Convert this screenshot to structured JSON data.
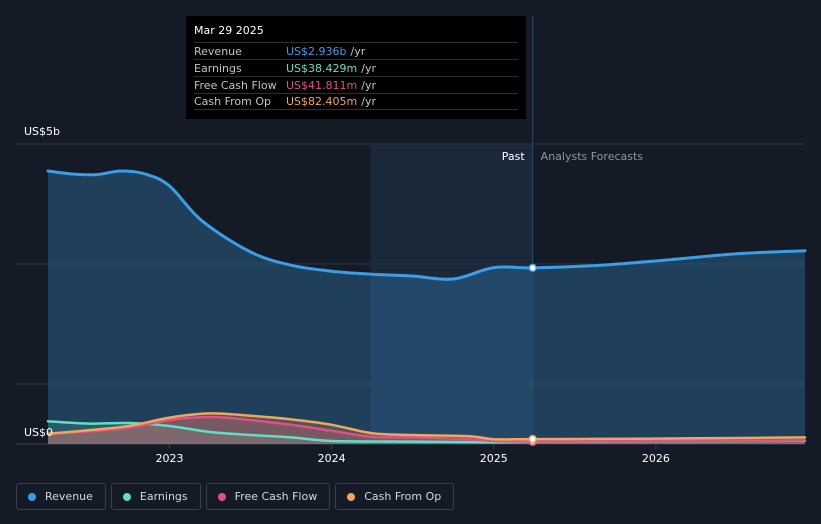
{
  "tooltip": {
    "date": "Mar 29 2025",
    "rows": [
      {
        "label": "Revenue",
        "value": "US$2.936b",
        "unit": "/yr",
        "color": "#3b9ee6"
      },
      {
        "label": "Earnings",
        "value": "US$38.429m",
        "unit": "/yr",
        "color": "#5fe0c4"
      },
      {
        "label": "Free Cash Flow",
        "value": "US$41.811m",
        "unit": "/yr",
        "color": "#e0508a"
      },
      {
        "label": "Cash From Op",
        "value": "US$82.405m",
        "unit": "/yr",
        "color": "#f0a858"
      }
    ]
  },
  "legend": [
    {
      "label": "Revenue",
      "color": "#3b9ee6"
    },
    {
      "label": "Earnings",
      "color": "#5fe0c4"
    },
    {
      "label": "Free Cash Flow",
      "color": "#e0508a"
    },
    {
      "label": "Cash From Op",
      "color": "#f0a858"
    }
  ],
  "chart_data": {
    "type": "area",
    "title": "",
    "y_max_label": "US$5b",
    "y_min_label": "US$0",
    "ylim": [
      0,
      5.0
    ],
    "xlim": [
      2022.25,
      2026.92
    ],
    "x_ticks": [
      2023,
      2024,
      2025,
      2026
    ],
    "x_tick_labels": [
      "2023",
      "2024",
      "2025",
      "2026"
    ],
    "past_label": "Past",
    "forecast_label": "Analysts Forecasts",
    "divider_x": 2025.24,
    "shaded_start_x": 2024.24,
    "series": [
      {
        "name": "Revenue",
        "unit": "US$b",
        "color": "#3b9ee6",
        "fill": true,
        "x": [
          2022.25,
          2022.4,
          2022.55,
          2022.7,
          2022.85,
          2023.0,
          2023.2,
          2023.5,
          2023.75,
          2024.0,
          2024.25,
          2024.5,
          2024.75,
          2025.0,
          2025.24,
          2025.6,
          2026.0,
          2026.5,
          2026.92
        ],
        "y": [
          4.55,
          4.5,
          4.49,
          4.55,
          4.5,
          4.3,
          3.72,
          3.2,
          2.98,
          2.88,
          2.83,
          2.8,
          2.75,
          2.94,
          2.936,
          2.97,
          3.05,
          3.17,
          3.22
        ]
      },
      {
        "name": "Earnings",
        "unit": "US$b",
        "color": "#5fe0c4",
        "fill": true,
        "x": [
          2022.25,
          2022.5,
          2022.75,
          2023.0,
          2023.25,
          2023.5,
          2023.75,
          2024.0,
          2024.5,
          2025.0,
          2025.24,
          2025.6,
          2026.0,
          2026.5,
          2026.92
        ],
        "y": [
          0.38,
          0.34,
          0.35,
          0.3,
          0.2,
          0.15,
          0.11,
          0.05,
          0.04,
          0.03,
          0.038,
          0.04,
          0.045,
          0.05,
          0.055
        ]
      },
      {
        "name": "Free Cash Flow",
        "unit": "US$b",
        "color": "#e0508a",
        "fill": true,
        "x": [
          2022.25,
          2022.5,
          2022.75,
          2023.0,
          2023.25,
          2023.5,
          2023.75,
          2024.0,
          2024.25,
          2024.5,
          2024.85,
          2025.0,
          2025.24,
          2025.6,
          2026.0,
          2026.5,
          2026.92
        ],
        "y": [
          0.17,
          0.21,
          0.27,
          0.4,
          0.45,
          0.4,
          0.32,
          0.22,
          0.12,
          0.11,
          0.08,
          0.05,
          0.042,
          0.045,
          0.05,
          0.055,
          0.06
        ]
      },
      {
        "name": "Cash From Op",
        "unit": "US$b",
        "color": "#f0a858",
        "fill": true,
        "x": [
          2022.25,
          2022.5,
          2022.75,
          2023.0,
          2023.25,
          2023.5,
          2023.75,
          2024.0,
          2024.25,
          2024.5,
          2024.85,
          2025.0,
          2025.24,
          2025.6,
          2026.0,
          2026.5,
          2026.92
        ],
        "y": [
          0.17,
          0.23,
          0.3,
          0.44,
          0.51,
          0.47,
          0.41,
          0.32,
          0.18,
          0.15,
          0.13,
          0.08,
          0.082,
          0.085,
          0.09,
          0.1,
          0.11
        ]
      }
    ]
  }
}
